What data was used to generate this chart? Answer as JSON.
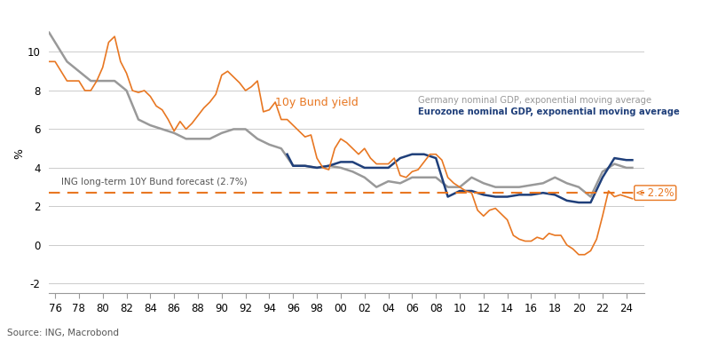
{
  "xlabel": "",
  "ylabel": "%",
  "source": "Source: ING, Macrobond",
  "xlim": [
    1975.5,
    2025.5
  ],
  "ylim": [
    -2.5,
    12
  ],
  "yticks": [
    -2,
    0,
    2,
    4,
    6,
    8,
    10
  ],
  "xticks": [
    1976,
    1978,
    1980,
    1982,
    1984,
    1986,
    1988,
    1990,
    1992,
    1994,
    1996,
    1998,
    2000,
    2002,
    2004,
    2006,
    2008,
    2010,
    2012,
    2014,
    2016,
    2018,
    2020,
    2022,
    2024
  ],
  "xtick_labels": [
    "76",
    "78",
    "80",
    "82",
    "84",
    "86",
    "88",
    "90",
    "92",
    "94",
    "96",
    "98",
    "00",
    "02",
    "04",
    "06",
    "08",
    "10",
    "12",
    "14",
    "16",
    "18",
    "20",
    "22",
    "24"
  ],
  "dashed_level": 2.7,
  "dashed_color": "#E87722",
  "annotation_2_2": "< 2.2%",
  "bund_label": "10y Bund yield",
  "bund_color": "#E87722",
  "germany_label": "Germany nominal GDP, exponential moving average",
  "germany_color": "#999999",
  "eurozone_label": "Eurozone nominal GDP, exponential moving average",
  "eurozone_color": "#1F3F7A",
  "forecast_label": "ING long-term 10Y Bund forecast (2.7%)",
  "background_color": "#FFFFFF",
  "grid_color": "#CCCCCC",
  "bund_x": [
    1975.5,
    1976,
    1976.5,
    1977,
    1977.5,
    1978,
    1978.5,
    1979,
    1979.5,
    1980,
    1980.5,
    1981,
    1981.5,
    1982,
    1982.5,
    1983,
    1983.5,
    1984,
    1984.5,
    1985,
    1985.5,
    1986,
    1986.5,
    1987,
    1987.5,
    1988,
    1988.5,
    1989,
    1989.5,
    1990,
    1990.5,
    1991,
    1991.5,
    1992,
    1992.5,
    1993,
    1993.5,
    1994,
    1994.5,
    1995,
    1995.5,
    1996,
    1996.5,
    1997,
    1997.5,
    1998,
    1998.5,
    1999,
    1999.5,
    2000,
    2000.5,
    2001,
    2001.5,
    2002,
    2002.5,
    2003,
    2003.5,
    2004,
    2004.5,
    2005,
    2005.5,
    2006,
    2006.5,
    2007,
    2007.5,
    2008,
    2008.5,
    2009,
    2009.5,
    2010,
    2010.5,
    2011,
    2011.5,
    2012,
    2012.5,
    2013,
    2013.5,
    2014,
    2014.5,
    2015,
    2015.5,
    2016,
    2016.5,
    2017,
    2017.5,
    2018,
    2018.5,
    2019,
    2019.5,
    2020,
    2020.5,
    2021,
    2021.5,
    2022,
    2022.5,
    2023,
    2023.5,
    2024,
    2024.5
  ],
  "bund_y": [
    9.5,
    9.5,
    9.0,
    8.5,
    8.5,
    8.5,
    8.0,
    8.0,
    8.5,
    9.2,
    10.5,
    10.8,
    9.5,
    8.9,
    8.0,
    7.9,
    8.0,
    7.7,
    7.2,
    7.0,
    6.5,
    5.9,
    6.4,
    6.0,
    6.3,
    6.7,
    7.1,
    7.4,
    7.8,
    8.8,
    9.0,
    8.7,
    8.4,
    8.0,
    8.2,
    8.5,
    6.9,
    7.0,
    7.4,
    6.5,
    6.5,
    6.2,
    5.9,
    5.6,
    5.7,
    4.5,
    4.0,
    3.9,
    5.0,
    5.5,
    5.3,
    5.0,
    4.7,
    5.0,
    4.5,
    4.2,
    4.2,
    4.2,
    4.5,
    3.6,
    3.5,
    3.8,
    3.9,
    4.3,
    4.7,
    4.7,
    4.4,
    3.5,
    3.2,
    3.0,
    2.8,
    2.7,
    1.8,
    1.5,
    1.8,
    1.9,
    1.6,
    1.3,
    0.5,
    0.3,
    0.2,
    0.2,
    0.4,
    0.3,
    0.6,
    0.5,
    0.5,
    0.0,
    -0.2,
    -0.5,
    -0.5,
    -0.3,
    0.3,
    1.5,
    2.8,
    2.5,
    2.6,
    2.5,
    2.4
  ],
  "germany_x": [
    1975.5,
    1977,
    1979,
    1981,
    1982,
    1983,
    1984,
    1985,
    1986,
    1987,
    1988,
    1989,
    1990,
    1991,
    1992,
    1993,
    1994,
    1995,
    1996,
    1997,
    1998,
    1999,
    2000,
    2001,
    2002,
    2003,
    2004,
    2005,
    2006,
    2007,
    2008,
    2009,
    2010,
    2011,
    2012,
    2013,
    2014,
    2015,
    2016,
    2017,
    2018,
    2019,
    2020,
    2021,
    2022,
    2023,
    2024,
    2024.5
  ],
  "germany_y": [
    11.0,
    9.5,
    8.5,
    8.5,
    8.0,
    6.5,
    6.2,
    6.0,
    5.8,
    5.5,
    5.5,
    5.5,
    5.8,
    6.0,
    6.0,
    5.5,
    5.2,
    5.0,
    4.1,
    4.1,
    4.0,
    4.1,
    4.0,
    3.8,
    3.5,
    3.0,
    3.3,
    3.2,
    3.5,
    3.5,
    3.5,
    3.0,
    3.0,
    3.5,
    3.2,
    3.0,
    3.0,
    3.0,
    3.1,
    3.2,
    3.5,
    3.2,
    3.0,
    2.5,
    3.8,
    4.2,
    4.0,
    4.0
  ],
  "eurozone_x": [
    1995.5,
    1996,
    1997,
    1998,
    1999,
    2000,
    2001,
    2002,
    2003,
    2004,
    2005,
    2006,
    2007,
    2008,
    2009,
    2010,
    2011,
    2012,
    2013,
    2014,
    2015,
    2016,
    2017,
    2018,
    2019,
    2020,
    2021,
    2022,
    2023,
    2024,
    2024.5
  ],
  "eurozone_y": [
    4.7,
    4.1,
    4.1,
    4.0,
    4.1,
    4.3,
    4.3,
    4.0,
    4.0,
    4.0,
    4.5,
    4.7,
    4.7,
    4.5,
    2.5,
    2.8,
    2.8,
    2.6,
    2.5,
    2.5,
    2.6,
    2.6,
    2.7,
    2.6,
    2.3,
    2.2,
    2.2,
    3.5,
    4.5,
    4.4,
    4.4
  ]
}
